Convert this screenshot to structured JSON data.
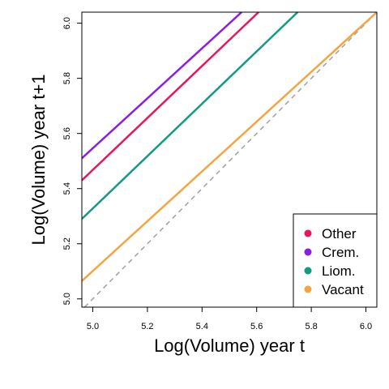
{
  "chart_data": {
    "type": "line",
    "title": "",
    "xlabel": "Log(Volume) year t",
    "ylabel": "Log(Volume) year t+1",
    "xlim": [
      4.96,
      6.04
    ],
    "ylim": [
      4.97,
      6.04
    ],
    "x_ticks": [
      "5.0",
      "5.2",
      "5.4",
      "5.6",
      "5.8",
      "6.0"
    ],
    "y_ticks": [
      "5.0",
      "5.2",
      "5.4",
      "5.6",
      "5.8",
      "6.0"
    ],
    "grid": false,
    "legend_position": "bottom-right",
    "series": [
      {
        "name": "Other",
        "color": "#e8175d",
        "x": [
          4.96,
          5.607
        ],
        "y": [
          5.43,
          6.04
        ]
      },
      {
        "name": "Crem.",
        "color": "#8a1de6",
        "x": [
          4.96,
          5.545
        ],
        "y": [
          5.51,
          6.04
        ]
      },
      {
        "name": "Liom.",
        "color": "#139b80",
        "x": [
          4.96,
          5.75
        ],
        "y": [
          5.29,
          6.04
        ]
      },
      {
        "name": "Vacant",
        "color": "#f5a442",
        "x": [
          4.96,
          6.04
        ],
        "y": [
          5.065,
          6.04
        ]
      }
    ],
    "reference_line": {
      "style": "dashed",
      "color": "#a0a0a0",
      "x": [
        4.97,
        6.04
      ],
      "y": [
        4.97,
        6.04
      ]
    }
  }
}
